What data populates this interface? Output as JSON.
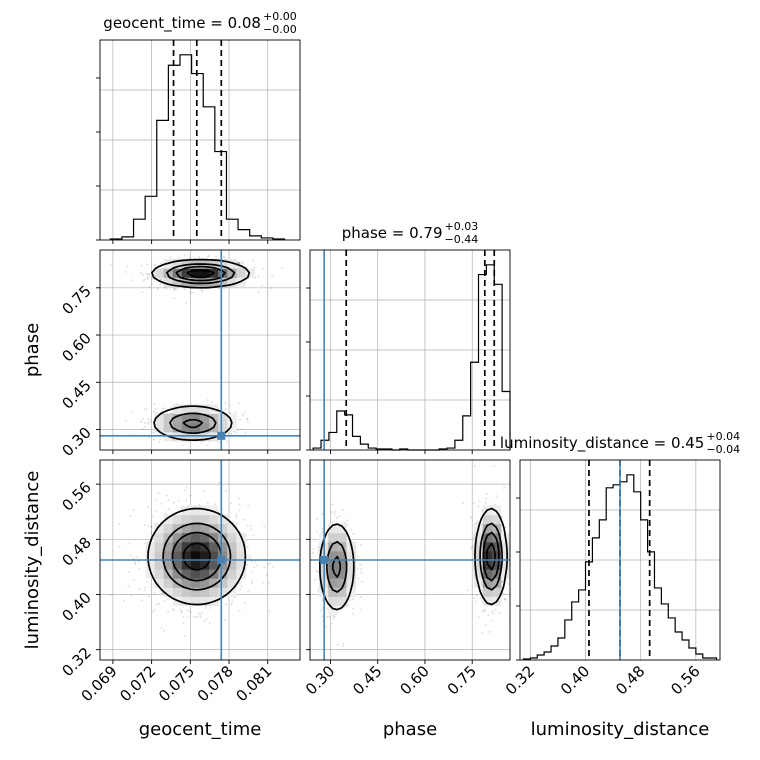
{
  "chart_data": [
    {
      "type": "histogram",
      "panel": "diag-1",
      "parameter": "geocent_time",
      "title": {
        "name": "geocent_time",
        "median": "0.08",
        "upper": "+0.00",
        "lower": "−0.00"
      },
      "xlim": [
        0.068,
        0.0835
      ],
      "bin_edges": [
        0.0688,
        0.0697,
        0.0706,
        0.0715,
        0.0724,
        0.0733,
        0.0742,
        0.0751,
        0.076,
        0.0769,
        0.0778,
        0.0787,
        0.0796,
        0.0805,
        0.0814,
        0.0823
      ],
      "values": [
        1,
        3,
        20,
        42,
        115,
        168,
        178,
        160,
        128,
        85,
        20,
        10,
        4,
        2,
        1
      ],
      "quantiles": [
        0.0737,
        0.0755,
        0.0774
      ],
      "grid": true
    },
    {
      "type": "contour_density",
      "panel": "phase-vs-geocent_time",
      "x_param": "geocent_time",
      "y_param": "phase",
      "xlim": [
        0.068,
        0.0835
      ],
      "ylim": [
        0.235,
        0.87
      ],
      "yticks": [
        "0.30",
        "0.45",
        "0.60",
        "0.75"
      ],
      "modes": [
        {
          "x": 0.0758,
          "y": 0.795,
          "sx": 0.0019,
          "sy": 0.022,
          "weight": 0.6
        },
        {
          "x": 0.0752,
          "y": 0.32,
          "sx": 0.0017,
          "sy": 0.03,
          "weight": 0.4
        }
      ],
      "truth": {
        "x": 0.0774,
        "y": 0.28
      },
      "grid": true
    },
    {
      "type": "histogram",
      "panel": "diag-2",
      "parameter": "phase",
      "title": {
        "name": "phase",
        "median": "0.79",
        "upper": "+0.03",
        "lower": "−0.44"
      },
      "xlim": [
        0.235,
        0.87
      ],
      "bin_edges": [
        0.245,
        0.27,
        0.295,
        0.32,
        0.345,
        0.37,
        0.395,
        0.42,
        0.445,
        0.47,
        0.495,
        0.52,
        0.545,
        0.57,
        0.595,
        0.62,
        0.645,
        0.67,
        0.695,
        0.72,
        0.745,
        0.77,
        0.795,
        0.82,
        0.845,
        0.87
      ],
      "values": [
        2,
        10,
        18,
        40,
        36,
        14,
        6,
        2,
        1,
        1,
        0,
        1,
        0,
        0,
        0,
        0,
        1,
        2,
        10,
        35,
        90,
        180,
        190,
        170,
        60
      ],
      "quantiles": [
        0.35,
        0.79,
        0.82
      ],
      "truth": 0.28,
      "grid": true
    },
    {
      "type": "contour_density",
      "panel": "luminosity_distance-vs-geocent_time",
      "x_param": "geocent_time",
      "y_param": "luminosity_distance",
      "xlim": [
        0.068,
        0.0835
      ],
      "ylim": [
        0.305,
        0.595
      ],
      "yticks": [
        "0.32",
        "0.40",
        "0.48",
        "0.56"
      ],
      "modes": [
        {
          "x": 0.0755,
          "y": 0.455,
          "sx": 0.0019,
          "sy": 0.035,
          "weight": 1
        }
      ],
      "truth": {
        "x": 0.0774,
        "y": 0.45
      },
      "xticks": [
        "0.069",
        "0.072",
        "0.075",
        "0.078",
        "0.081"
      ],
      "xlabel": "geocent_time",
      "grid": true
    },
    {
      "type": "contour_density",
      "panel": "luminosity_distance-vs-phase",
      "x_param": "phase",
      "y_param": "luminosity_distance",
      "xlim": [
        0.235,
        0.87
      ],
      "ylim": [
        0.305,
        0.595
      ],
      "modes": [
        {
          "x": 0.81,
          "y": 0.455,
          "sx": 0.025,
          "sy": 0.035,
          "weight": 0.6
        },
        {
          "x": 0.32,
          "y": 0.44,
          "sx": 0.03,
          "sy": 0.035,
          "weight": 0.4
        }
      ],
      "truth": {
        "x": 0.28,
        "y": 0.45
      },
      "xticks": [
        "0.30",
        "0.45",
        "0.60",
        "0.75"
      ],
      "xlabel": "phase",
      "grid": true
    },
    {
      "type": "histogram",
      "panel": "diag-3",
      "parameter": "luminosity_distance",
      "title": {
        "name": "luminosity_distance",
        "median": "0.45",
        "upper": "+0.04",
        "lower": "−0.04"
      },
      "xlim": [
        0.305,
        0.595
      ],
      "bin_edges": [
        0.31,
        0.32,
        0.33,
        0.34,
        0.35,
        0.36,
        0.37,
        0.38,
        0.39,
        0.4,
        0.41,
        0.42,
        0.43,
        0.44,
        0.45,
        0.46,
        0.47,
        0.48,
        0.49,
        0.5,
        0.51,
        0.52,
        0.53,
        0.54,
        0.55,
        0.56,
        0.57,
        0.58,
        0.59
      ],
      "values": [
        1,
        2,
        5,
        8,
        14,
        22,
        40,
        58,
        70,
        98,
        122,
        140,
        172,
        175,
        178,
        185,
        168,
        140,
        108,
        72,
        56,
        42,
        28,
        20,
        12,
        6,
        2,
        2
      ],
      "quantiles": [
        0.405,
        0.45,
        0.493
      ],
      "truth": 0.45,
      "xticks": [
        "0.32",
        "0.40",
        "0.48",
        "0.56"
      ],
      "xlabel": "luminosity_distance",
      "grid": true
    }
  ],
  "ylabels": {
    "phase": "phase",
    "luminosity_distance": "luminosity_distance"
  },
  "colors": {
    "truth": "#4682b4",
    "line": "#000000",
    "grid": "#b0b0b0"
  }
}
